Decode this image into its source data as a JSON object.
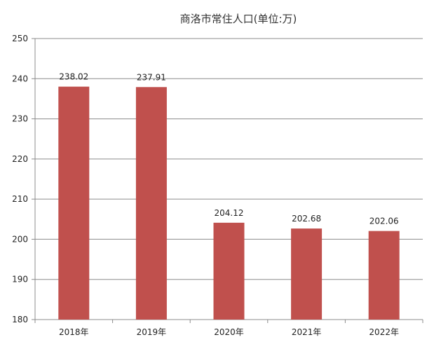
{
  "chart_data": {
    "type": "bar",
    "title": "商洛市常住人口(单位:万)",
    "categories": [
      "2018年",
      "2019年",
      "2020年",
      "2021年",
      "2022年"
    ],
    "values": [
      238.02,
      237.91,
      204.12,
      202.68,
      202.06
    ],
    "value_labels": [
      "238.02",
      "237.91",
      "204.12",
      "202.68",
      "202.06"
    ],
    "ylim": [
      180,
      250
    ],
    "y_ticks": [
      180,
      190,
      200,
      210,
      220,
      230,
      240,
      250
    ],
    "grid": true,
    "legend": "none",
    "xlabel": "",
    "ylabel": ""
  },
  "colors": {
    "bar": "#c0504d",
    "grid": "#8c8c8c",
    "axis": "#8c8c8c",
    "text": "#222222"
  }
}
